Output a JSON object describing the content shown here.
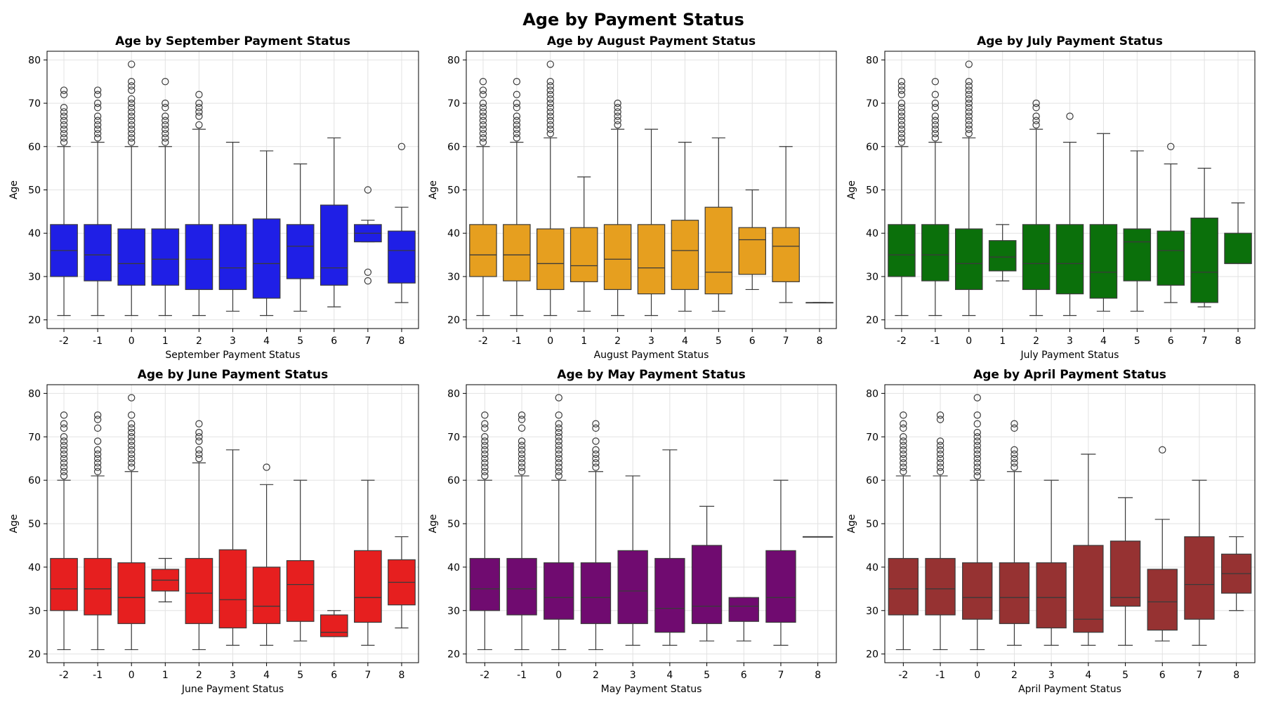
{
  "figure": {
    "title": "Age by Payment Status"
  },
  "chart_data": [
    {
      "type": "box",
      "title": "Age by September Payment Status",
      "xlabel": "September Payment Status",
      "ylabel": "Age",
      "ylim": [
        18,
        82
      ],
      "yticks": [
        20,
        30,
        40,
        50,
        60,
        70,
        80
      ],
      "grid": true,
      "color": "#1f1fe6",
      "categories": [
        "-2",
        "-1",
        "0",
        "1",
        "2",
        "3",
        "4",
        "5",
        "6",
        "7",
        "8"
      ],
      "boxes": [
        {
          "min": 21,
          "q1": 30,
          "median": 36,
          "q3": 42,
          "max": 60,
          "outliers": [
            61,
            62,
            63,
            64,
            65,
            66,
            67,
            68,
            69,
            72,
            73
          ]
        },
        {
          "min": 21,
          "q1": 29,
          "median": 35,
          "q3": 42,
          "max": 61,
          "outliers": [
            62,
            63,
            64,
            65,
            66,
            67,
            69,
            70,
            72,
            73
          ]
        },
        {
          "min": 21,
          "q1": 28,
          "median": 33,
          "q3": 41,
          "max": 60,
          "outliers": [
            61,
            62,
            63,
            64,
            65,
            66,
            67,
            68,
            69,
            70,
            71,
            73,
            74,
            75,
            79
          ]
        },
        {
          "min": 21,
          "q1": 28,
          "median": 34,
          "q3": 41,
          "max": 60,
          "outliers": [
            61,
            62,
            63,
            64,
            65,
            66,
            67,
            69,
            70,
            75
          ]
        },
        {
          "min": 21,
          "q1": 27,
          "median": 34,
          "q3": 42,
          "max": 64,
          "outliers": [
            65,
            67,
            68,
            69,
            70,
            72
          ]
        },
        {
          "min": 22,
          "q1": 27,
          "median": 32,
          "q3": 42,
          "max": 61,
          "outliers": []
        },
        {
          "min": 21,
          "q1": 25,
          "median": 33,
          "q3": 43.3,
          "max": 59,
          "outliers": []
        },
        {
          "min": 22,
          "q1": 29.5,
          "median": 37,
          "q3": 42,
          "max": 56,
          "outliers": []
        },
        {
          "min": 23,
          "q1": 28,
          "median": 32,
          "q3": 46.5,
          "max": 62,
          "outliers": []
        },
        {
          "min": 38,
          "q1": 38,
          "median": 40,
          "q3": 42,
          "max": 43,
          "outliers": [
            29,
            31,
            50
          ]
        },
        {
          "min": 24,
          "q1": 28.5,
          "median": 36,
          "q3": 40.5,
          "max": 46,
          "outliers": [
            60
          ]
        }
      ]
    },
    {
      "type": "box",
      "title": "Age by August Payment Status",
      "xlabel": "August Payment Status",
      "ylabel": "Age",
      "ylim": [
        18,
        82
      ],
      "yticks": [
        20,
        30,
        40,
        50,
        60,
        70,
        80
      ],
      "grid": true,
      "color": "#e69f1f",
      "categories": [
        "-2",
        "-1",
        "0",
        "1",
        "2",
        "3",
        "4",
        "5",
        "6",
        "7",
        "8"
      ],
      "boxes": [
        {
          "min": 21,
          "q1": 30,
          "median": 35,
          "q3": 42,
          "max": 60,
          "outliers": [
            61,
            62,
            63,
            64,
            65,
            66,
            67,
            68,
            69,
            70,
            72,
            73,
            75
          ]
        },
        {
          "min": 21,
          "q1": 29,
          "median": 35,
          "q3": 42,
          "max": 61,
          "outliers": [
            62,
            63,
            64,
            65,
            66,
            67,
            69,
            70,
            72,
            75
          ]
        },
        {
          "min": 21,
          "q1": 27,
          "median": 33,
          "q3": 41,
          "max": 62,
          "outliers": [
            63,
            64,
            65,
            66,
            67,
            68,
            69,
            70,
            71,
            72,
            73,
            74,
            75,
            79
          ]
        },
        {
          "min": 22,
          "q1": 28.8,
          "median": 32.5,
          "q3": 41.3,
          "max": 53,
          "outliers": []
        },
        {
          "min": 21,
          "q1": 27,
          "median": 34,
          "q3": 42,
          "max": 64,
          "outliers": [
            65,
            66,
            67,
            68,
            69,
            70
          ]
        },
        {
          "min": 21,
          "q1": 26,
          "median": 32,
          "q3": 42,
          "max": 64,
          "outliers": []
        },
        {
          "min": 22,
          "q1": 27,
          "median": 36,
          "q3": 43,
          "max": 61,
          "outliers": []
        },
        {
          "min": 22,
          "q1": 26,
          "median": 31,
          "q3": 46,
          "max": 62,
          "outliers": []
        },
        {
          "min": 27,
          "q1": 30.5,
          "median": 38.5,
          "q3": 41.3,
          "max": 50,
          "outliers": []
        },
        {
          "min": 24,
          "q1": 28.8,
          "median": 37,
          "q3": 41.3,
          "max": 60,
          "outliers": []
        },
        {
          "min": 24,
          "q1": 24,
          "median": 24,
          "q3": 24,
          "max": 24,
          "outliers": []
        }
      ]
    },
    {
      "type": "box",
      "title": "Age by July Payment Status",
      "xlabel": "July Payment Status",
      "ylabel": "Age",
      "ylim": [
        18,
        82
      ],
      "yticks": [
        20,
        30,
        40,
        50,
        60,
        70,
        80
      ],
      "grid": true,
      "color": "#0b700b",
      "categories": [
        "-2",
        "-1",
        "0",
        "1",
        "2",
        "3",
        "4",
        "5",
        "6",
        "7",
        "8"
      ],
      "boxes": [
        {
          "min": 21,
          "q1": 30,
          "median": 35,
          "q3": 42,
          "max": 60,
          "outliers": [
            61,
            62,
            63,
            64,
            65,
            66,
            67,
            68,
            69,
            70,
            72,
            73,
            74,
            75
          ]
        },
        {
          "min": 21,
          "q1": 29,
          "median": 35,
          "q3": 42,
          "max": 61,
          "outliers": [
            62,
            63,
            64,
            65,
            66,
            67,
            69,
            70,
            72,
            75
          ]
        },
        {
          "min": 21,
          "q1": 27,
          "median": 33,
          "q3": 41,
          "max": 62,
          "outliers": [
            63,
            64,
            65,
            66,
            67,
            68,
            69,
            70,
            71,
            72,
            73,
            74,
            75,
            79
          ]
        },
        {
          "min": 29,
          "q1": 31.3,
          "median": 34.5,
          "q3": 38.3,
          "max": 42,
          "outliers": []
        },
        {
          "min": 21,
          "q1": 27,
          "median": 33,
          "q3": 42,
          "max": 64,
          "outliers": [
            65,
            66,
            67,
            69,
            70
          ]
        },
        {
          "min": 21,
          "q1": 26,
          "median": 33,
          "q3": 42,
          "max": 61,
          "outliers": [
            67
          ]
        },
        {
          "min": 22,
          "q1": 25,
          "median": 31,
          "q3": 42,
          "max": 63,
          "outliers": []
        },
        {
          "min": 22,
          "q1": 29,
          "median": 38,
          "q3": 41,
          "max": 59,
          "outliers": []
        },
        {
          "min": 24,
          "q1": 28,
          "median": 36,
          "q3": 40.5,
          "max": 56,
          "outliers": [
            60
          ]
        },
        {
          "min": 23,
          "q1": 24,
          "median": 31,
          "q3": 43.5,
          "max": 55,
          "outliers": []
        },
        {
          "min": 33,
          "q1": 33,
          "median": 33,
          "q3": 40,
          "max": 47,
          "outliers": []
        }
      ]
    },
    {
      "type": "box",
      "title": "Age by June Payment Status",
      "xlabel": "June Payment Status",
      "ylabel": "Age",
      "ylim": [
        18,
        82
      ],
      "yticks": [
        20,
        30,
        40,
        50,
        60,
        70,
        80
      ],
      "grid": true,
      "color": "#e61f1f",
      "categories": [
        "-2",
        "-1",
        "0",
        "1",
        "2",
        "3",
        "4",
        "5",
        "6",
        "7",
        "8"
      ],
      "boxes": [
        {
          "min": 21,
          "q1": 30,
          "median": 35,
          "q3": 42,
          "max": 60,
          "outliers": [
            61,
            62,
            63,
            64,
            65,
            66,
            67,
            68,
            69,
            70,
            72,
            73,
            75
          ]
        },
        {
          "min": 21,
          "q1": 29,
          "median": 35,
          "q3": 42,
          "max": 61,
          "outliers": [
            62,
            63,
            64,
            65,
            66,
            67,
            69,
            72,
            74,
            75
          ]
        },
        {
          "min": 21,
          "q1": 27,
          "median": 33,
          "q3": 41,
          "max": 62,
          "outliers": [
            63,
            64,
            65,
            66,
            67,
            68,
            69,
            70,
            71,
            72,
            73,
            75,
            79
          ]
        },
        {
          "min": 32,
          "q1": 34.5,
          "median": 37,
          "q3": 39.5,
          "max": 42,
          "outliers": []
        },
        {
          "min": 21,
          "q1": 27,
          "median": 34,
          "q3": 42,
          "max": 64,
          "outliers": [
            65,
            66,
            67,
            69,
            70,
            71,
            73
          ]
        },
        {
          "min": 22,
          "q1": 26,
          "median": 32.5,
          "q3": 44,
          "max": 67,
          "outliers": []
        },
        {
          "min": 22,
          "q1": 27,
          "median": 31,
          "q3": 40,
          "max": 59,
          "outliers": [
            63
          ]
        },
        {
          "min": 23,
          "q1": 27.5,
          "median": 36,
          "q3": 41.5,
          "max": 60,
          "outliers": []
        },
        {
          "min": 24,
          "q1": 24,
          "median": 25,
          "q3": 29,
          "max": 30,
          "outliers": []
        },
        {
          "min": 22,
          "q1": 27.3,
          "median": 33,
          "q3": 43.8,
          "max": 60,
          "outliers": []
        },
        {
          "min": 26,
          "q1": 31.3,
          "median": 36.5,
          "q3": 41.7,
          "max": 47,
          "outliers": []
        }
      ]
    },
    {
      "type": "box",
      "title": "Age by May Payment Status",
      "xlabel": "May Payment Status",
      "ylabel": "Age",
      "ylim": [
        18,
        82
      ],
      "yticks": [
        20,
        30,
        40,
        50,
        60,
        70,
        80
      ],
      "grid": true,
      "color": "#700b70",
      "categories": [
        "-2",
        "-1",
        "0",
        "2",
        "3",
        "4",
        "5",
        "6",
        "7",
        "8"
      ],
      "boxes": [
        {
          "min": 21,
          "q1": 30,
          "median": 35,
          "q3": 42,
          "max": 60,
          "outliers": [
            61,
            62,
            63,
            64,
            65,
            66,
            67,
            68,
            69,
            70,
            72,
            73,
            75
          ]
        },
        {
          "min": 21,
          "q1": 29,
          "median": 35,
          "q3": 42,
          "max": 61,
          "outliers": [
            62,
            63,
            64,
            65,
            66,
            67,
            68,
            69,
            72,
            74,
            75
          ]
        },
        {
          "min": 21,
          "q1": 28,
          "median": 33,
          "q3": 41,
          "max": 60,
          "outliers": [
            61,
            62,
            63,
            64,
            65,
            66,
            67,
            68,
            69,
            70,
            71,
            72,
            73,
            75,
            79
          ]
        },
        {
          "min": 21,
          "q1": 27,
          "median": 33,
          "q3": 41,
          "max": 62,
          "outliers": [
            63,
            64,
            65,
            66,
            67,
            69,
            72,
            73
          ]
        },
        {
          "min": 22,
          "q1": 27,
          "median": 34.5,
          "q3": 43.8,
          "max": 61,
          "outliers": []
        },
        {
          "min": 22,
          "q1": 25,
          "median": 30.5,
          "q3": 42,
          "max": 67,
          "outliers": []
        },
        {
          "min": 23,
          "q1": 27,
          "median": 31,
          "q3": 45,
          "max": 54,
          "outliers": []
        },
        {
          "min": 23,
          "q1": 27.5,
          "median": 31,
          "q3": 33,
          "max": 33,
          "outliers": []
        },
        {
          "min": 22,
          "q1": 27.3,
          "median": 33,
          "q3": 43.8,
          "max": 60,
          "outliers": []
        },
        {
          "min": 47,
          "q1": 47,
          "median": 47,
          "q3": 47,
          "max": 47,
          "outliers": []
        }
      ]
    },
    {
      "type": "box",
      "title": "Age by April Payment Status",
      "xlabel": "April Payment Status",
      "ylabel": "Age",
      "ylim": [
        18,
        82
      ],
      "yticks": [
        20,
        30,
        40,
        50,
        60,
        70,
        80
      ],
      "grid": true,
      "color": "#963232",
      "categories": [
        "-2",
        "-1",
        "0",
        "2",
        "3",
        "4",
        "5",
        "6",
        "7",
        "8"
      ],
      "boxes": [
        {
          "min": 21,
          "q1": 29,
          "median": 35,
          "q3": 42,
          "max": 61,
          "outliers": [
            62,
            63,
            64,
            65,
            66,
            67,
            68,
            69,
            70,
            72,
            73,
            75
          ]
        },
        {
          "min": 21,
          "q1": 29,
          "median": 35,
          "q3": 42,
          "max": 61,
          "outliers": [
            62,
            63,
            64,
            65,
            66,
            67,
            68,
            69,
            74,
            75
          ]
        },
        {
          "min": 21,
          "q1": 28,
          "median": 33,
          "q3": 41,
          "max": 60,
          "outliers": [
            61,
            62,
            63,
            64,
            65,
            66,
            67,
            68,
            69,
            70,
            71,
            73,
            75,
            79
          ]
        },
        {
          "min": 22,
          "q1": 27,
          "median": 33,
          "q3": 41,
          "max": 62,
          "outliers": [
            63,
            64,
            65,
            66,
            67,
            72,
            73
          ]
        },
        {
          "min": 22,
          "q1": 26,
          "median": 33,
          "q3": 41,
          "max": 60,
          "outliers": []
        },
        {
          "min": 22,
          "q1": 25,
          "median": 28,
          "q3": 45,
          "max": 66,
          "outliers": []
        },
        {
          "min": 22,
          "q1": 31,
          "median": 33,
          "q3": 46,
          "max": 56,
          "outliers": []
        },
        {
          "min": 23,
          "q1": 25.5,
          "median": 32,
          "q3": 39.5,
          "max": 51,
          "outliers": [
            67
          ]
        },
        {
          "min": 22,
          "q1": 28,
          "median": 36,
          "q3": 47,
          "max": 60,
          "outliers": []
        },
        {
          "min": 30,
          "q1": 34,
          "median": 38.5,
          "q3": 43,
          "max": 47,
          "outliers": []
        }
      ]
    }
  ]
}
